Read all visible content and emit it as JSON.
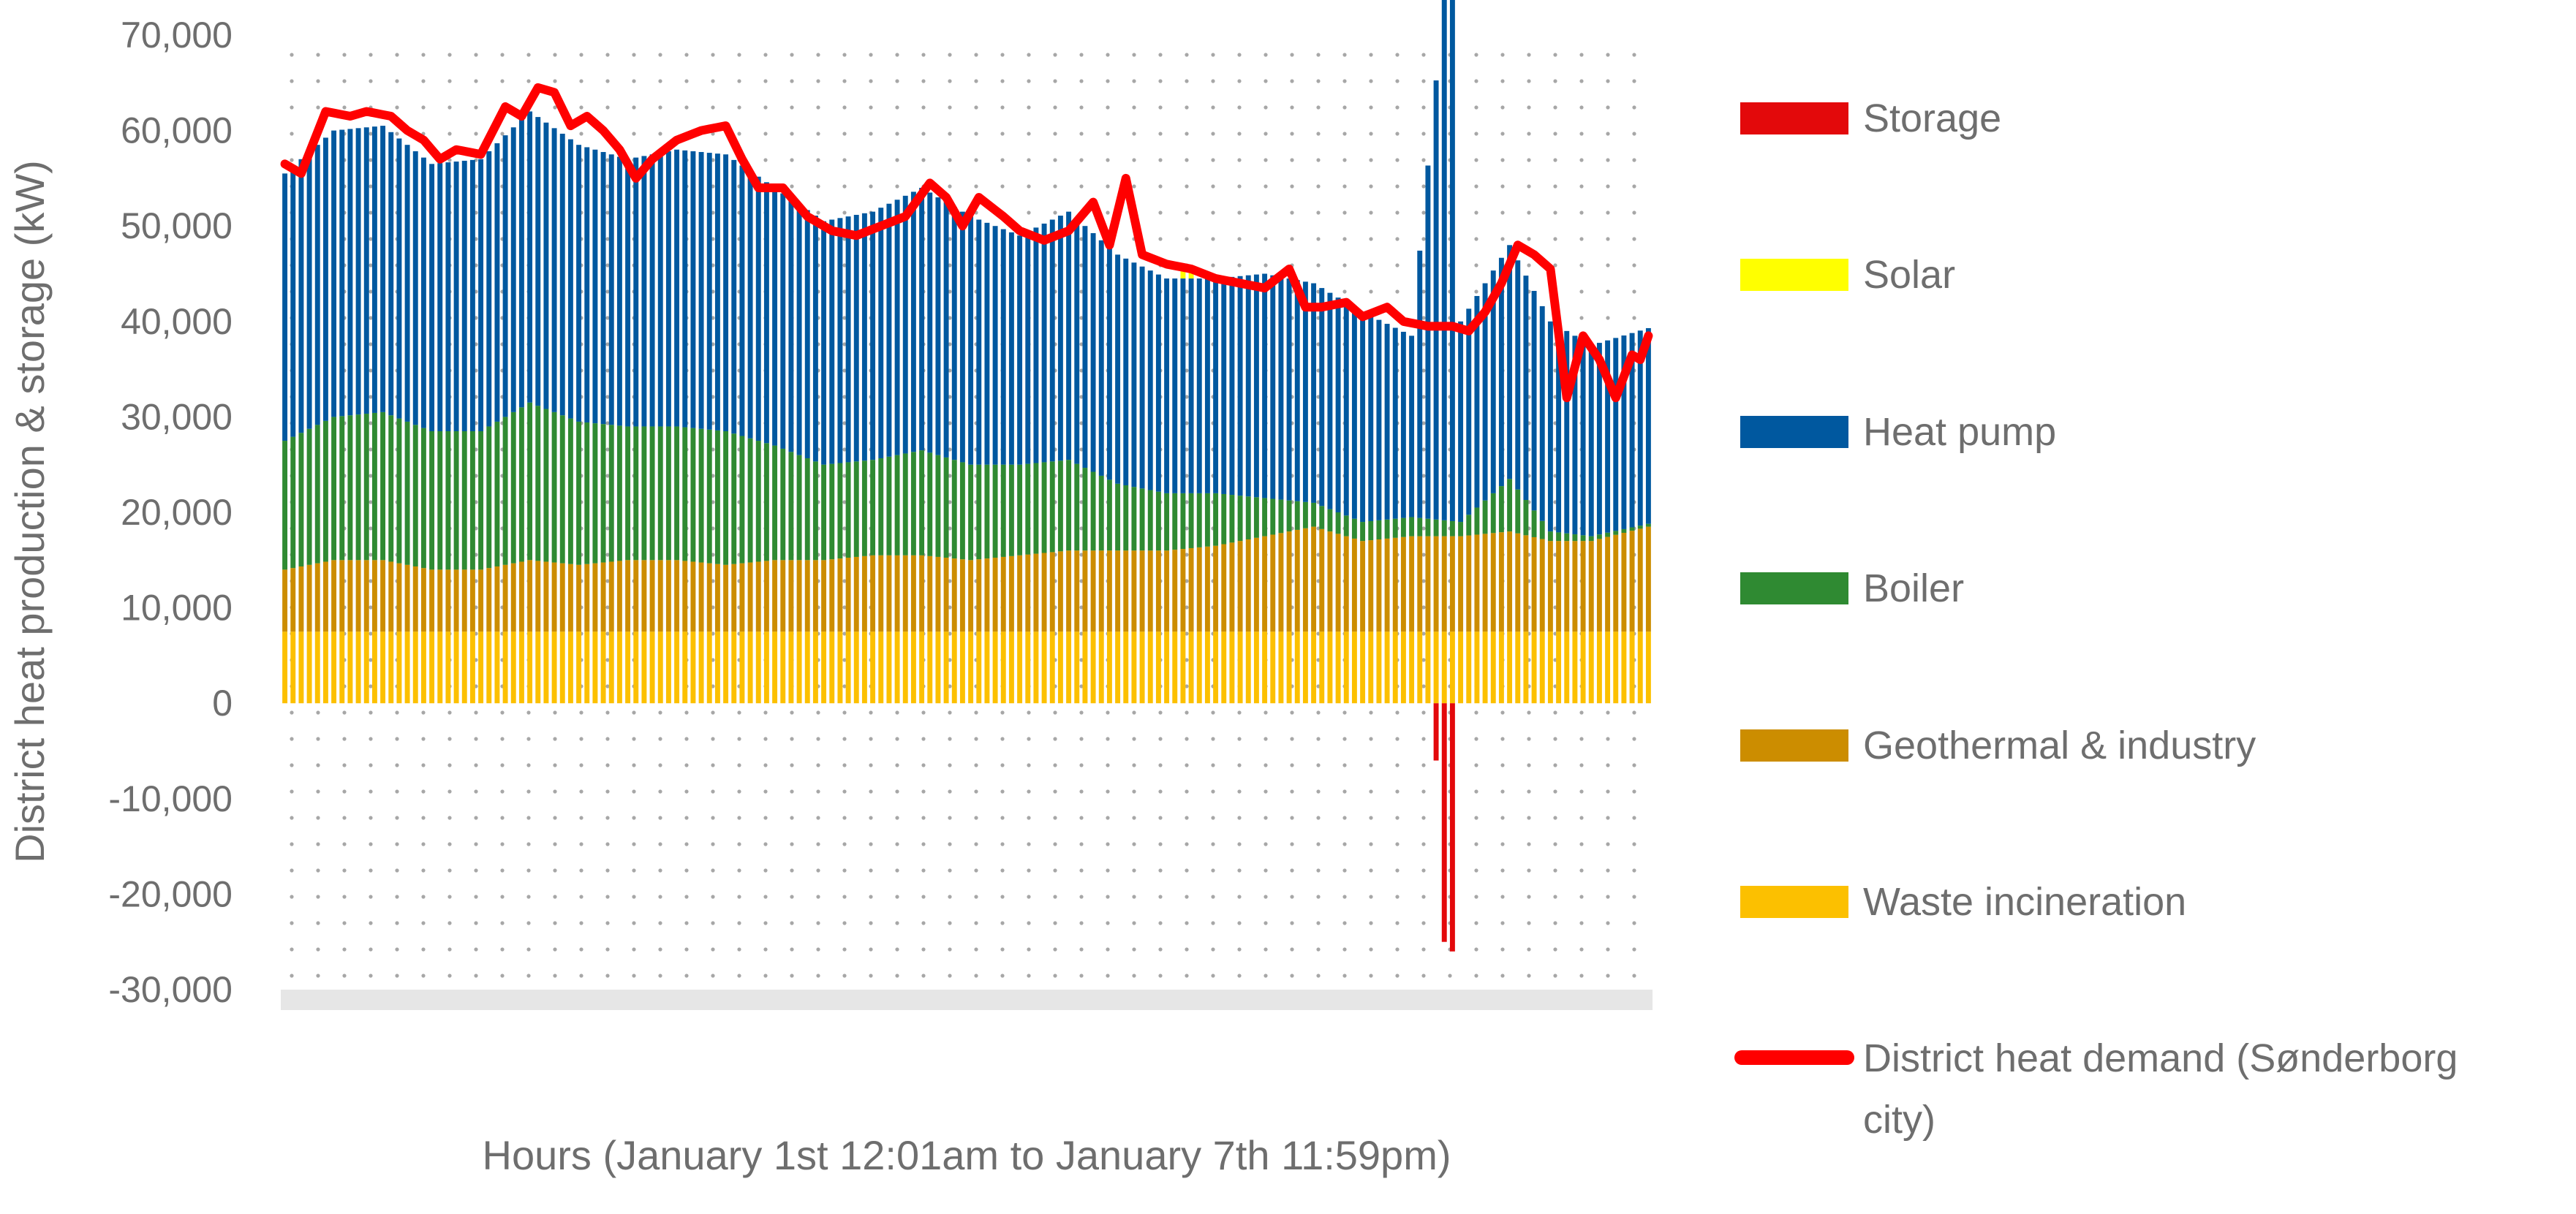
{
  "chart_data": {
    "type": "bar",
    "stacked": true,
    "ylabel": "District heat production & storage (kW)",
    "xlabel": "Hours (January 1st 12:01am to January 7th 11:59pm)",
    "ylim": [
      -30000,
      70000
    ],
    "yticks": [
      70000,
      60000,
      50000,
      40000,
      30000,
      20000,
      10000,
      0,
      -10000,
      -20000,
      -30000
    ],
    "ytick_labels": [
      "70,000",
      "60,000",
      "50,000",
      "40,000",
      "30,000",
      "20,000",
      "10,000",
      "0",
      "-10,000",
      "-20,000",
      "-30,000"
    ],
    "x_count": 168,
    "grid": "dotted",
    "legend_position": "right",
    "series": [
      {
        "name": "Storage",
        "color": "#e3090b",
        "sparse": [
          {
            "x": 141,
            "value": -6000
          },
          {
            "x": 142,
            "value": -25000
          },
          {
            "x": 143,
            "value": -26000
          }
        ]
      },
      {
        "name": "Solar",
        "color": "#ffff00",
        "sparse": [
          {
            "x": 110,
            "value": 800
          },
          {
            "x": 111,
            "value": 600
          }
        ]
      },
      {
        "name": "Heat pump",
        "color": "#00589f",
        "anchors": [
          [
            0,
            28000
          ],
          [
            6,
            30000
          ],
          [
            12,
            30000
          ],
          [
            18,
            28000
          ],
          [
            24,
            28500
          ],
          [
            30,
            30500
          ],
          [
            36,
            29000
          ],
          [
            42,
            28000
          ],
          [
            48,
            29000
          ],
          [
            54,
            29000
          ],
          [
            60,
            27000
          ],
          [
            66,
            25500
          ],
          [
            72,
            26000
          ],
          [
            78,
            27500
          ],
          [
            84,
            26000
          ],
          [
            90,
            24000
          ],
          [
            96,
            26000
          ],
          [
            102,
            24000
          ],
          [
            108,
            22500
          ],
          [
            114,
            22500
          ],
          [
            120,
            23500
          ],
          [
            126,
            23000
          ],
          [
            132,
            22000
          ],
          [
            138,
            19000
          ],
          [
            141,
            46000
          ],
          [
            142,
            66000
          ],
          [
            143,
            66000
          ],
          [
            144,
            21000
          ],
          [
            150,
            24500
          ],
          [
            155,
            22000
          ],
          [
            160,
            20000
          ],
          [
            167,
            20500
          ]
        ]
      },
      {
        "name": "Boiler",
        "color": "#2f8a32",
        "anchors": [
          [
            0,
            13500
          ],
          [
            6,
            15000
          ],
          [
            12,
            15500
          ],
          [
            18,
            14500
          ],
          [
            24,
            14500
          ],
          [
            30,
            16500
          ],
          [
            36,
            15000
          ],
          [
            42,
            14000
          ],
          [
            48,
            14000
          ],
          [
            54,
            14000
          ],
          [
            60,
            12000
          ],
          [
            66,
            10000
          ],
          [
            72,
            10000
          ],
          [
            78,
            11000
          ],
          [
            84,
            10000
          ],
          [
            90,
            9500
          ],
          [
            96,
            9500
          ],
          [
            102,
            7000
          ],
          [
            108,
            6000
          ],
          [
            114,
            5500
          ],
          [
            120,
            4000
          ],
          [
            126,
            2500
          ],
          [
            132,
            2000
          ],
          [
            138,
            2000
          ],
          [
            144,
            1500
          ],
          [
            150,
            5500
          ],
          [
            155,
            1000
          ],
          [
            160,
            500
          ],
          [
            167,
            300
          ]
        ]
      },
      {
        "name": "Geothermal & industry",
        "color": "#cc8d00",
        "anchors": [
          [
            0,
            6500
          ],
          [
            6,
            7500
          ],
          [
            12,
            7500
          ],
          [
            18,
            6500
          ],
          [
            24,
            6500
          ],
          [
            30,
            7500
          ],
          [
            36,
            7000
          ],
          [
            42,
            7500
          ],
          [
            48,
            7500
          ],
          [
            54,
            7000
          ],
          [
            60,
            7500
          ],
          [
            66,
            7500
          ],
          [
            72,
            8000
          ],
          [
            78,
            8000
          ],
          [
            84,
            7500
          ],
          [
            90,
            8000
          ],
          [
            96,
            8500
          ],
          [
            102,
            8500
          ],
          [
            108,
            8500
          ],
          [
            114,
            9000
          ],
          [
            120,
            10000
          ],
          [
            126,
            11000
          ],
          [
            132,
            9500
          ],
          [
            138,
            10000
          ],
          [
            144,
            10000
          ],
          [
            150,
            10500
          ],
          [
            155,
            9500
          ],
          [
            160,
            9500
          ],
          [
            167,
            11000
          ]
        ]
      },
      {
        "name": "Waste incineration",
        "color": "#fcc000",
        "anchors": [
          [
            0,
            7500
          ],
          [
            167,
            7500
          ]
        ]
      }
    ],
    "demand": {
      "name": "District heat demand (Sønderborg city)",
      "color": "#ff0000",
      "anchors": [
        [
          0,
          56500
        ],
        [
          2,
          55500
        ],
        [
          5,
          62000
        ],
        [
          8,
          61500
        ],
        [
          10,
          62000
        ],
        [
          13,
          61500
        ],
        [
          15,
          60000
        ],
        [
          17,
          59000
        ],
        [
          19,
          57000
        ],
        [
          21,
          58000
        ],
        [
          24,
          57500
        ],
        [
          27,
          62500
        ],
        [
          29,
          61500
        ],
        [
          31,
          64500
        ],
        [
          33,
          64000
        ],
        [
          35,
          60500
        ],
        [
          37,
          61500
        ],
        [
          39,
          60000
        ],
        [
          41,
          58000
        ],
        [
          43,
          55000
        ],
        [
          45,
          57000
        ],
        [
          48,
          59000
        ],
        [
          51,
          60000
        ],
        [
          54,
          60500
        ],
        [
          56,
          57000
        ],
        [
          58,
          54000
        ],
        [
          61,
          54000
        ],
        [
          64,
          51000
        ],
        [
          67,
          49500
        ],
        [
          70,
          49000
        ],
        [
          73,
          50000
        ],
        [
          76,
          51000
        ],
        [
          79,
          54500
        ],
        [
          81,
          53000
        ],
        [
          83,
          50000
        ],
        [
          85,
          53000
        ],
        [
          88,
          51000
        ],
        [
          90,
          49500
        ],
        [
          93,
          48500
        ],
        [
          96,
          49500
        ],
        [
          99,
          52500
        ],
        [
          101,
          48000
        ],
        [
          103,
          55000
        ],
        [
          105,
          47000
        ],
        [
          108,
          46000
        ],
        [
          111,
          45500
        ],
        [
          114,
          44500
        ],
        [
          117,
          44000
        ],
        [
          120,
          43500
        ],
        [
          123,
          45500
        ],
        [
          125,
          41500
        ],
        [
          127,
          41500
        ],
        [
          130,
          42000
        ],
        [
          132,
          40500
        ],
        [
          135,
          41500
        ],
        [
          137,
          40000
        ],
        [
          140,
          39500
        ],
        [
          143,
          39500
        ],
        [
          145,
          39000
        ],
        [
          147,
          41000
        ],
        [
          149,
          44000
        ],
        [
          151,
          48000
        ],
        [
          153,
          47000
        ],
        [
          155,
          45500
        ],
        [
          157,
          32000
        ],
        [
          159,
          38500
        ],
        [
          161,
          36000
        ],
        [
          163,
          32000
        ],
        [
          165,
          36500
        ],
        [
          166,
          36000
        ],
        [
          167,
          38500
        ]
      ]
    }
  },
  "legend": {
    "items": [
      {
        "label": "Storage",
        "color": "#e3090b",
        "kind": "bar"
      },
      {
        "label": "Solar",
        "color": "#ffff00",
        "kind": "bar"
      },
      {
        "label": "Heat pump",
        "color": "#00589f",
        "kind": "bar"
      },
      {
        "label": "Boiler",
        "color": "#2f8a32",
        "kind": "bar"
      },
      {
        "label": "Geothermal & industry",
        "color": "#cc8d00",
        "kind": "bar"
      },
      {
        "label": "Waste incineration",
        "color": "#fcc000",
        "kind": "bar"
      },
      {
        "label": "District heat demand (Sønderborg",
        "label_cont": "city)",
        "color": "#ff0000",
        "kind": "line"
      }
    ]
  }
}
